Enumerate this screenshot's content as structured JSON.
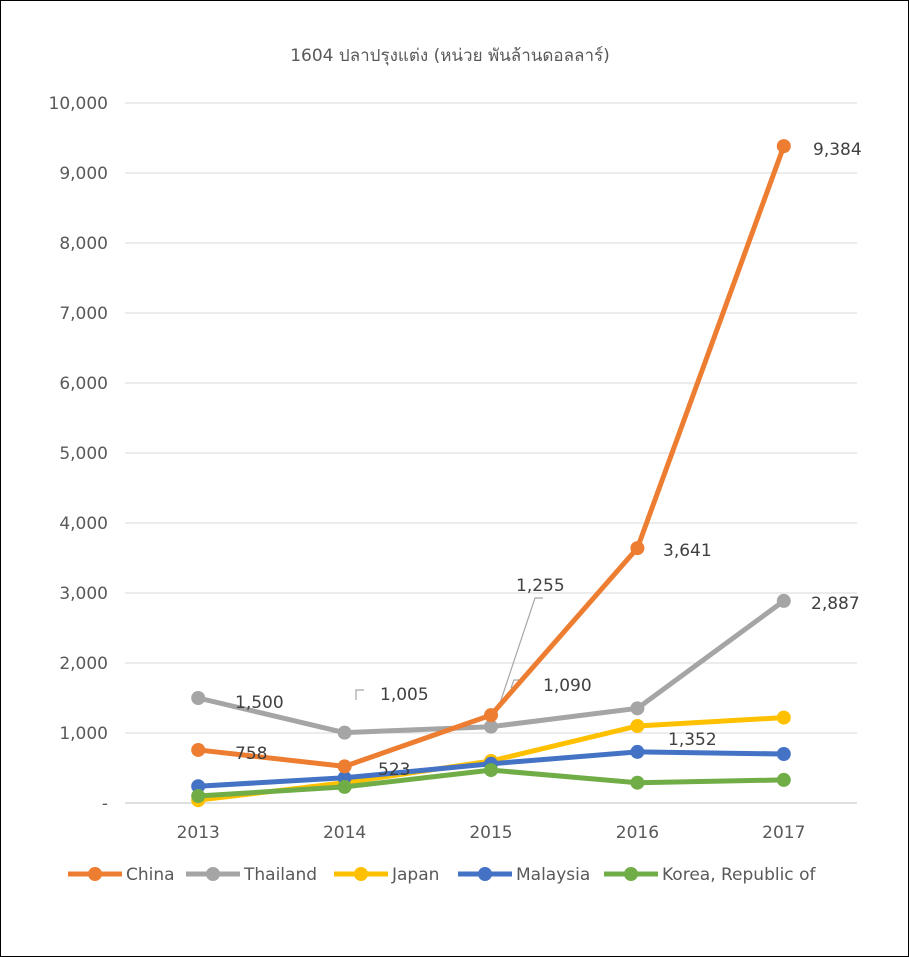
{
  "chart_data": {
    "type": "line",
    "title": "1604 ปลาปรุงแต่ง (หน่วย พันล้านดอลลาร์)",
    "categories": [
      "2013",
      "2014",
      "2015",
      "2016",
      "2017"
    ],
    "y_tick_labels": [
      "-",
      "1,000",
      "2,000",
      "3,000",
      "4,000",
      "5,000",
      "6,000",
      "7,000",
      "8,000",
      "9,000",
      "10,000"
    ],
    "ylim": [
      0,
      10000
    ],
    "grid": "horizontal",
    "legend": "bottom",
    "series": [
      {
        "name": "China",
        "color": "#ED7D31",
        "values": [
          758,
          523,
          1255,
          3641,
          9384
        ]
      },
      {
        "name": "Thailand",
        "color": "#A5A5A5",
        "values": [
          1500,
          1005,
          1090,
          1352,
          2887
        ]
      },
      {
        "name": "Japan",
        "color": "#FFC000",
        "values": [
          40,
          290,
          600,
          1100,
          1220
        ]
      },
      {
        "name": "Malaysia",
        "color": "#4472C4",
        "values": [
          240,
          360,
          560,
          730,
          700
        ]
      },
      {
        "name": "Korea, Republic of",
        "color": "#70AD47",
        "values": [
          100,
          230,
          470,
          290,
          330
        ]
      }
    ],
    "data_labels": [
      {
        "text": "758"
      },
      {
        "text": "523"
      },
      {
        "text": "1,255"
      },
      {
        "text": "3,641"
      },
      {
        "text": "9,384"
      },
      {
        "text": "1,500"
      },
      {
        "text": "1,005"
      },
      {
        "text": "1,090"
      },
      {
        "text": "1,352"
      },
      {
        "text": "2,887"
      }
    ]
  }
}
